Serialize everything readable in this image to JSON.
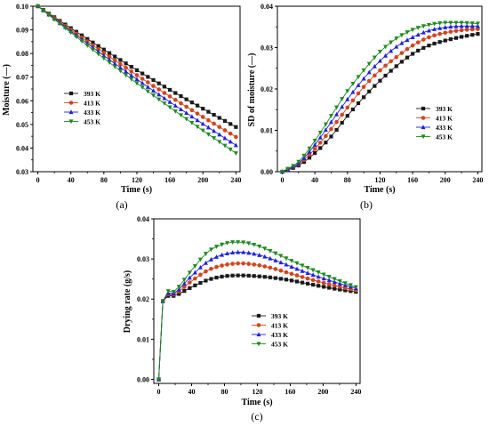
{
  "colors": {
    "393 K": "#1a1a1a",
    "413 K": "#d2451c",
    "433 K": "#1f1fe0",
    "453 K": "#1e8a1e"
  },
  "chart_data": [
    {
      "type": "line",
      "caption": "(a)",
      "xlabel": "Time (s)",
      "ylabel": "Moisture (—)",
      "xlim": [
        -6,
        245
      ],
      "ylim": [
        0.03,
        0.1
      ],
      "xticks": [
        0,
        40,
        80,
        120,
        160,
        200,
        240
      ],
      "yticks": [
        0.03,
        0.04,
        0.05,
        0.06,
        0.07,
        0.08,
        0.09,
        0.1
      ],
      "ytick_labels": [
        "0.03",
        "0.04",
        "0.05",
        "0.06",
        "0.07",
        "0.08",
        "0.09",
        "0.10"
      ],
      "legend_position": "left-middle",
      "x": [
        0,
        240
      ],
      "series": [
        {
          "name": "393 K",
          "marker": "square",
          "values": [
            0.1,
            0.0489
          ]
        },
        {
          "name": "413 K",
          "marker": "circle",
          "values": [
            0.1,
            0.0447
          ]
        },
        {
          "name": "433 K",
          "marker": "triangle-up",
          "values": [
            0.1,
            0.0412
          ]
        },
        {
          "name": "453 K",
          "marker": "triangle-down",
          "values": [
            0.1,
            0.0378
          ]
        }
      ]
    },
    {
      "type": "line",
      "caption": "(b)",
      "xlabel": "Time (s)",
      "ylabel": "SD of moisture (—)",
      "xlim": [
        -6,
        245
      ],
      "ylim": [
        0,
        0.04
      ],
      "xticks": [
        0,
        40,
        80,
        120,
        160,
        200,
        240
      ],
      "yticks": [
        0,
        0.01,
        0.02,
        0.03,
        0.04
      ],
      "ytick_labels": [
        "0.00",
        "0.01",
        "0.02",
        "0.03",
        "0.04"
      ],
      "legend_position": "right-middle",
      "x": [
        0,
        20,
        40,
        60,
        80,
        100,
        120,
        140,
        160,
        180,
        200,
        220,
        240
      ],
      "series": [
        {
          "name": "393 K",
          "marker": "square",
          "values": [
            0,
            0.0015,
            0.0045,
            0.0085,
            0.0135,
            0.018,
            0.022,
            0.0255,
            0.0285,
            0.0305,
            0.0317,
            0.0326,
            0.0333
          ]
        },
        {
          "name": "413 K",
          "marker": "circle",
          "values": [
            0,
            0.0018,
            0.0055,
            0.0103,
            0.0155,
            0.0205,
            0.0245,
            0.0277,
            0.0305,
            0.0325,
            0.0336,
            0.0342,
            0.0345
          ]
        },
        {
          "name": "433 K",
          "marker": "triangle-up",
          "values": [
            0,
            0.002,
            0.0065,
            0.012,
            0.0175,
            0.0225,
            0.0268,
            0.0302,
            0.0325,
            0.0341,
            0.0349,
            0.0352,
            0.0352
          ]
        },
        {
          "name": "453 K",
          "marker": "triangle-down",
          "values": [
            0,
            0.0024,
            0.0075,
            0.0135,
            0.0195,
            0.0245,
            0.029,
            0.0322,
            0.0343,
            0.0355,
            0.036,
            0.036,
            0.0358
          ]
        }
      ]
    },
    {
      "type": "line",
      "caption": "(c)",
      "xlabel": "Time (s)",
      "ylabel": "Drying rate (g/s)",
      "xlim": [
        -6,
        245
      ],
      "ylim": [
        -0.001,
        0.04
      ],
      "xticks": [
        0,
        40,
        80,
        120,
        160,
        200,
        240
      ],
      "yticks": [
        0,
        0.01,
        0.02,
        0.03,
        0.04
      ],
      "ytick_labels": [
        "0.00",
        "0.01",
        "0.02",
        "0.03",
        "0.04"
      ],
      "legend_position": "right-middle",
      "x": [
        0,
        5,
        20,
        40,
        60,
        80,
        100,
        120,
        140,
        160,
        180,
        200,
        220,
        240
      ],
      "series": [
        {
          "name": "393 K",
          "marker": "square",
          "values": [
            0,
            0.0195,
            0.0208,
            0.023,
            0.0248,
            0.0257,
            0.0259,
            0.0257,
            0.0253,
            0.0247,
            0.0239,
            0.0231,
            0.0224,
            0.0218
          ]
        },
        {
          "name": "413 K",
          "marker": "circle",
          "values": [
            0,
            0.0195,
            0.0212,
            0.0245,
            0.0272,
            0.0285,
            0.0289,
            0.0285,
            0.0276,
            0.0264,
            0.0252,
            0.0241,
            0.0231,
            0.0222
          ]
        },
        {
          "name": "433 K",
          "marker": "triangle-up",
          "values": [
            0,
            0.0195,
            0.0215,
            0.0258,
            0.0294,
            0.0312,
            0.0317,
            0.0311,
            0.0298,
            0.0282,
            0.0266,
            0.0252,
            0.0239,
            0.0227
          ]
        },
        {
          "name": "453 K",
          "marker": "triangle-down",
          "values": [
            0,
            0.0195,
            0.022,
            0.0272,
            0.0318,
            0.0338,
            0.0342,
            0.0333,
            0.0316,
            0.0297,
            0.0279,
            0.0262,
            0.0245,
            0.023
          ]
        }
      ]
    }
  ]
}
